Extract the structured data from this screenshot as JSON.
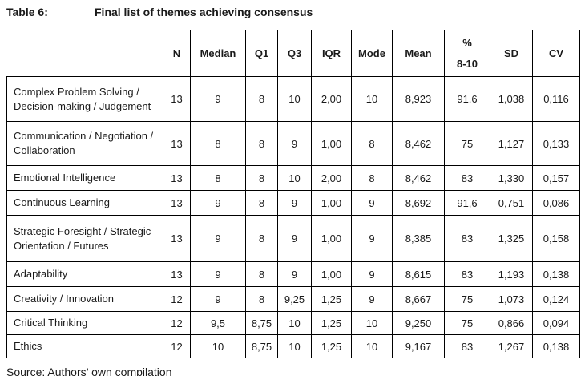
{
  "title": {
    "label": "Table 6:",
    "text": "Final list of themes achieving consensus"
  },
  "table": {
    "columns": [
      "N",
      "Median",
      "Q1",
      "Q3",
      "IQR",
      "Mode",
      "Mean",
      "%\n8-10",
      "SD",
      "CV"
    ],
    "rows": [
      {
        "label": "Complex Problem Solving / Decision-making / Judgement",
        "values": [
          "13",
          "9",
          "8",
          "10",
          "2,00",
          "10",
          "8,923",
          "91,6",
          "1,038",
          "0,116"
        ]
      },
      {
        "label": "Communication / Negotiation / Collaboration",
        "values": [
          "13",
          "8",
          "8",
          "9",
          "1,00",
          "8",
          "8,462",
          "75",
          "1,127",
          "0,133"
        ]
      },
      {
        "label": "Emotional Intelligence",
        "values": [
          "13",
          "8",
          "8",
          "10",
          "2,00",
          "8",
          "8,462",
          "83",
          "1,330",
          "0,157"
        ]
      },
      {
        "label": "Continuous Learning",
        "values": [
          "13",
          "9",
          "8",
          "9",
          "1,00",
          "9",
          "8,692",
          "91,6",
          "0,751",
          "0,086"
        ]
      },
      {
        "label": "Strategic Foresight / Strategic Orientation / Futures",
        "values": [
          "13",
          "9",
          "8",
          "9",
          "1,00",
          "9",
          "8,385",
          "83",
          "1,325",
          "0,158"
        ]
      },
      {
        "label": "Adaptability",
        "values": [
          "13",
          "9",
          "8",
          "9",
          "1,00",
          "9",
          "8,615",
          "83",
          "1,193",
          "0,138"
        ]
      },
      {
        "label": "Creativity / Innovation",
        "values": [
          "12",
          "9",
          "8",
          "9,25",
          "1,25",
          "9",
          "8,667",
          "75",
          "1,073",
          "0,124"
        ]
      },
      {
        "label": "Critical Thinking",
        "values": [
          "12",
          "9,5",
          "8,75",
          "10",
          "1,25",
          "10",
          "9,250",
          "75",
          "0,866",
          "0,094"
        ]
      },
      {
        "label": "Ethics",
        "values": [
          "12",
          "10",
          "8,75",
          "10",
          "1,25",
          "10",
          "9,167",
          "83",
          "1,267",
          "0,138"
        ]
      }
    ]
  },
  "source": "Source: Authors’ own compilation",
  "colors": {
    "text": "#1a1a1a",
    "border": "#000000",
    "background": "#ffffff"
  }
}
